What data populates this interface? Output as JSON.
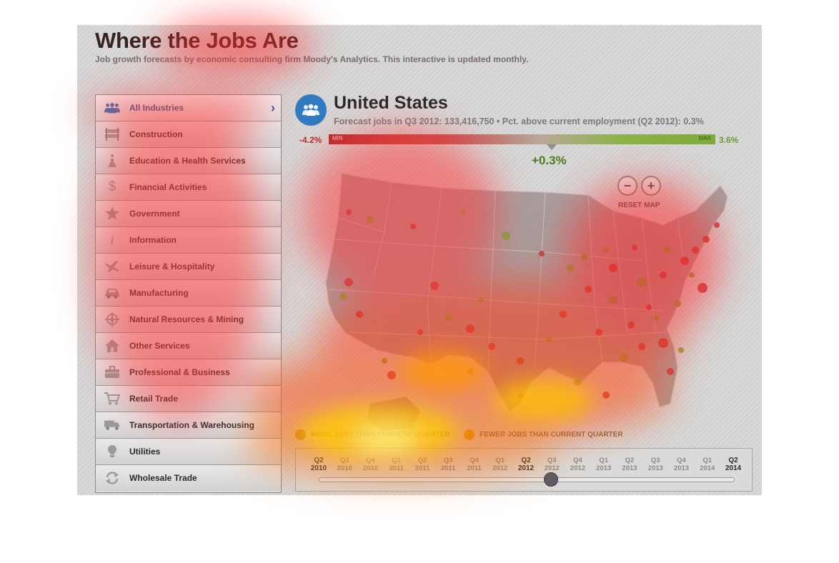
{
  "header": {
    "title": "Where the Jobs Are",
    "subtitle": "Job growth forecasts by economic consulting firm Moody's Analytics. This interactive is updated monthly."
  },
  "sidebar": {
    "items": [
      {
        "label": "All Industries",
        "icon": "people-icon",
        "active": true
      },
      {
        "label": "Construction",
        "icon": "barrier-icon"
      },
      {
        "label": "Education & Health Services",
        "icon": "flask-icon"
      },
      {
        "label": "Financial Activities",
        "icon": "dollar-icon"
      },
      {
        "label": "Government",
        "icon": "star-badge-icon"
      },
      {
        "label": "Information",
        "icon": "info-icon"
      },
      {
        "label": "Leisure & Hospitality",
        "icon": "airplane-icon"
      },
      {
        "label": "Manufacturing",
        "icon": "car-icon"
      },
      {
        "label": "Natural Resources & Mining",
        "icon": "target-icon"
      },
      {
        "label": "Other Services",
        "icon": "house-icon"
      },
      {
        "label": "Professional & Business",
        "icon": "briefcase-icon"
      },
      {
        "label": "Retail Trade",
        "icon": "cart-icon"
      },
      {
        "label": "Transportation & Warehousing",
        "icon": "truck-icon"
      },
      {
        "label": "Utilities",
        "icon": "lightbulb-icon"
      },
      {
        "label": "Wholesale Trade",
        "icon": "recycle-icon"
      }
    ]
  },
  "region": {
    "name": "United States",
    "forecast": "Forecast jobs in Q3 2012: 133,416,750 • Pct. above current employment (Q2 2012): 0.3%"
  },
  "scale": {
    "min_value": "-4.2%",
    "max_value": "3.6%",
    "min_tag": "MIN",
    "max_tag": "MAX",
    "current": "+0.3%",
    "current_fraction": 0.577
  },
  "map_controls": {
    "zoom_out": "−",
    "zoom_in": "+",
    "reset": "RESET MAP"
  },
  "legend": {
    "more": "MORE JOBS THAN CURRENT QUARTER",
    "fewer": "FEWER JOBS THAN CURRENT QUARTER",
    "more_color": "#7aa63a",
    "fewer_color": "#c23a3a"
  },
  "timeline": {
    "ticks": [
      {
        "q": "Q2",
        "y": "2010",
        "strong": true
      },
      {
        "q": "Q3",
        "y": "2010"
      },
      {
        "q": "Q4",
        "y": "2010"
      },
      {
        "q": "Q1",
        "y": "2011"
      },
      {
        "q": "Q2",
        "y": "2011"
      },
      {
        "q": "Q3",
        "y": "2011"
      },
      {
        "q": "Q4",
        "y": "2011"
      },
      {
        "q": "Q1",
        "y": "2012"
      },
      {
        "q": "Q2",
        "y": "2012",
        "strong": true
      },
      {
        "q": "Q3",
        "y": "2012"
      },
      {
        "q": "Q4",
        "y": "2012"
      },
      {
        "q": "Q1",
        "y": "2013"
      },
      {
        "q": "Q2",
        "y": "2013"
      },
      {
        "q": "Q3",
        "y": "2013"
      },
      {
        "q": "Q4",
        "y": "2013"
      },
      {
        "q": "Q1",
        "y": "2014"
      },
      {
        "q": "Q2",
        "y": "2014",
        "strong": true
      }
    ],
    "selected": "Q3 2012"
  }
}
